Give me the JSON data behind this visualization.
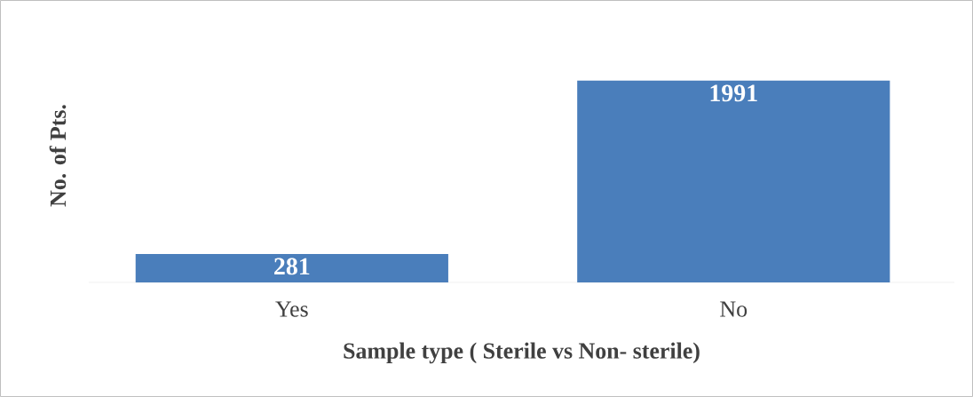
{
  "chart_data": {
    "type": "bar",
    "xlabel": "Sample type ( Sterile vs Non- sterile)",
    "ylabel": "No. of Pts.",
    "categories": [
      "Yes",
      "No"
    ],
    "values": [
      281,
      1991
    ],
    "color": "#4a7ebb",
    "data_labels": true
  }
}
